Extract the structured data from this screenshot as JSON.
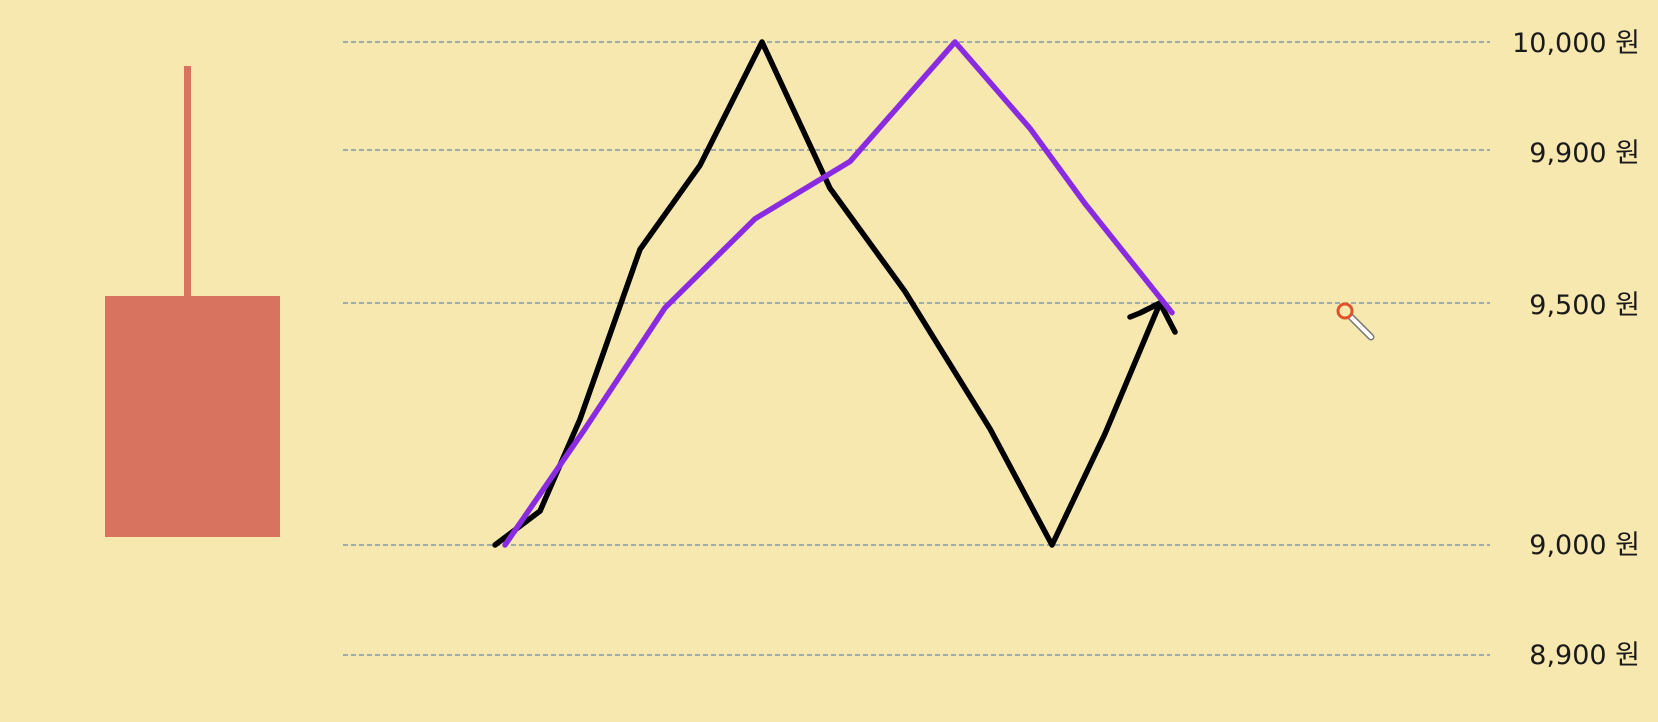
{
  "chart_data": {
    "type": "line",
    "title": "",
    "xlabel": "",
    "ylabel": "",
    "price_levels": [
      "10,000 원",
      "9,900 원",
      "9,500 원",
      "9,000 원",
      "8,900 원"
    ],
    "candle": {
      "color": "#d87360",
      "wick_high_fraction": 0.95,
      "body_top_fraction": 0.49,
      "body_bottom_fraction": 0.01
    },
    "series": [
      {
        "color": "#000000",
        "points": [
          [
            0,
            9000
          ],
          [
            1,
            9070
          ],
          [
            2,
            9260
          ],
          [
            3,
            9640
          ],
          [
            4,
            9860
          ],
          [
            5,
            10000
          ],
          [
            6,
            9800
          ],
          [
            7,
            9530
          ],
          [
            8,
            9240
          ],
          [
            9,
            9000
          ],
          [
            10,
            9230
          ],
          [
            11,
            9500
          ],
          [
            12,
            9440
          ]
        ]
      },
      {
        "color": "#8a2be2",
        "points": [
          [
            0,
            9000
          ],
          [
            1,
            9240
          ],
          [
            2,
            9490
          ],
          [
            3,
            9720
          ],
          [
            4,
            9870
          ],
          [
            5,
            10000
          ],
          [
            6,
            9920
          ],
          [
            7,
            9760
          ],
          [
            8,
            9480
          ]
        ]
      }
    ],
    "cursor_icon": "pen-cursor-icon"
  }
}
